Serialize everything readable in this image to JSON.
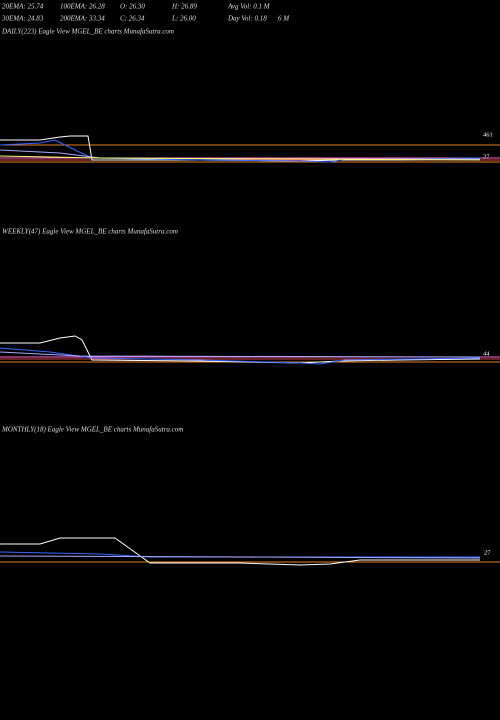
{
  "header": {
    "row1": [
      "20EMA: 25.74",
      "100EMA: 26.28",
      "O: 26.30",
      "H: 26.89",
      "Avg Vol: 0.1  M"
    ],
    "row2": [
      "30EMA: 24.83",
      "200EMA: 33.34",
      "C: 26.34",
      "L: 26.00",
      "Day Vol: 0.18",
      "6  M"
    ]
  },
  "panels": [
    {
      "title": "DAILY(223) Eagle  View  MGEL_BE charts MunafaSutra.com",
      "labels": [
        "461",
        "27"
      ]
    },
    {
      "title": "WEEKLY(47) Eagle  View  MGEL_BE charts MunafaSutra.com",
      "labels": [
        "44"
      ]
    },
    {
      "title": "MONTHLY(18) Eagle  View  MGEL_BE charts MunafaSutra.com",
      "labels": [
        "27"
      ]
    }
  ]
}
